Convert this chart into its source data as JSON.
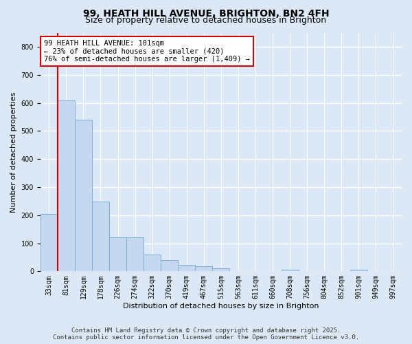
{
  "title": "99, HEATH HILL AVENUE, BRIGHTON, BN2 4FH",
  "subtitle": "Size of property relative to detached houses in Brighton",
  "xlabel": "Distribution of detached houses by size in Brighton",
  "ylabel": "Number of detached properties",
  "bar_color": "#c5d8f0",
  "bar_edge_color": "#7aafd4",
  "background_color": "#dce8f5",
  "plot_bg_color": "#dce8f5",
  "grid_color": "#ffffff",
  "bins": [
    "33sqm",
    "81sqm",
    "129sqm",
    "178sqm",
    "226sqm",
    "274sqm",
    "322sqm",
    "370sqm",
    "419sqm",
    "467sqm",
    "515sqm",
    "563sqm",
    "611sqm",
    "660sqm",
    "708sqm",
    "756sqm",
    "804sqm",
    "852sqm",
    "901sqm",
    "949sqm",
    "997sqm"
  ],
  "values": [
    205,
    608,
    540,
    248,
    120,
    120,
    60,
    40,
    22,
    18,
    10,
    0,
    0,
    0,
    6,
    0,
    0,
    0,
    5,
    0,
    0
  ],
  "ylim": [
    0,
    850
  ],
  "yticks": [
    0,
    100,
    200,
    300,
    400,
    500,
    600,
    700,
    800
  ],
  "annotation_text": "99 HEATH HILL AVENUE: 101sqm\n← 23% of detached houses are smaller (420)\n76% of semi-detached houses are larger (1,409) →",
  "vline_bar_index": 1,
  "annotation_box_color": "#ffffff",
  "annotation_box_edge": "#cc0000",
  "vline_color": "#cc0000",
  "footer_line1": "Contains HM Land Registry data © Crown copyright and database right 2025.",
  "footer_line2": "Contains public sector information licensed under the Open Government Licence v3.0.",
  "title_fontsize": 10,
  "subtitle_fontsize": 9,
  "tick_fontsize": 7,
  "ylabel_fontsize": 8,
  "xlabel_fontsize": 8,
  "annotation_fontsize": 7.5,
  "footer_fontsize": 6.5
}
